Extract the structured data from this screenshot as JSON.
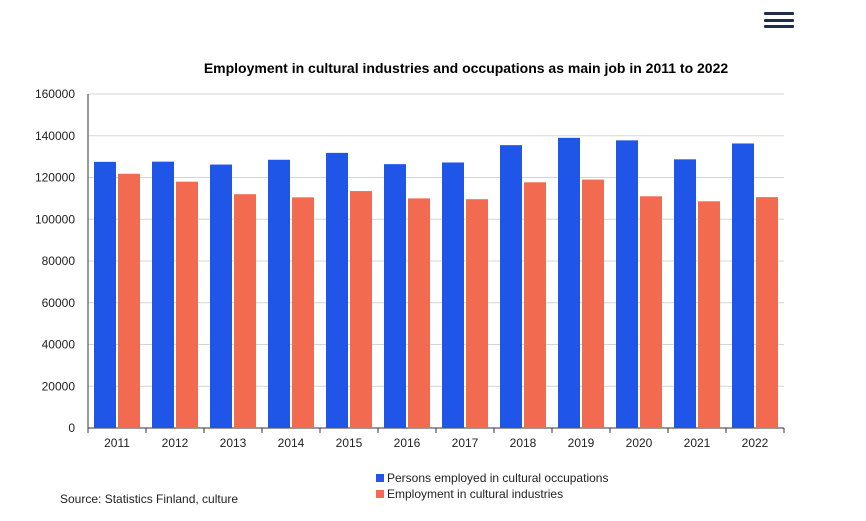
{
  "header": {
    "menu_icon": "hamburger-menu-icon"
  },
  "chart_data": {
    "type": "bar",
    "title": "Employment in cultural industries and occupations as main job in 2011 to 2022",
    "categories": [
      "2011",
      "2012",
      "2013",
      "2014",
      "2015",
      "2016",
      "2017",
      "2018",
      "2019",
      "2020",
      "2021",
      "2022"
    ],
    "series": [
      {
        "name": "Persons employed in cultural occupations",
        "color": "#1f56e8",
        "values": [
          127500,
          127600,
          126200,
          128500,
          131800,
          126400,
          127200,
          135500,
          139000,
          137800,
          128700,
          136300
        ]
      },
      {
        "name": "Employment in cultural industries",
        "color": "#f26a50",
        "values": [
          121800,
          118000,
          112000,
          110500,
          113500,
          110000,
          109600,
          117700,
          119000,
          111000,
          108600,
          110600
        ]
      }
    ],
    "ylim": [
      0,
      160000
    ],
    "yticks": [
      "0",
      "20000",
      "40000",
      "60000",
      "80000",
      "100000",
      "120000",
      "140000",
      "160000"
    ],
    "grid": true,
    "legend_position": "bottom"
  },
  "footer": {
    "source": "Source: Statistics Finland, culture"
  }
}
